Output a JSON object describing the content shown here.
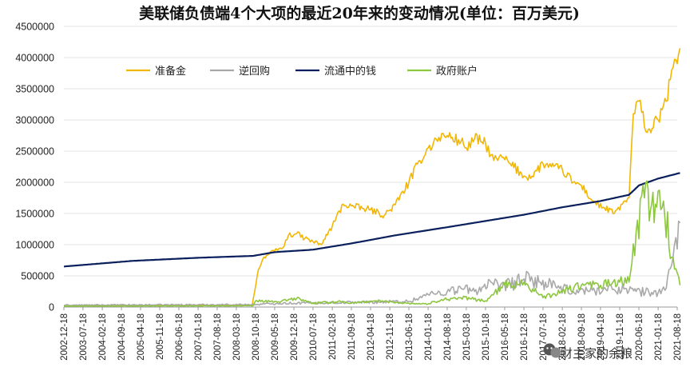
{
  "chart_data": {
    "type": "line",
    "title": "美联储负债端4个大项的最近20年来的变动情况(单位：百万美元)",
    "xlabel": "",
    "ylabel": "",
    "ylim": [
      0,
      4500000
    ],
    "yticks": [
      "0",
      "500000",
      "1000000",
      "1500000",
      "2000000",
      "2500000",
      "3000000",
      "3500000",
      "4000000",
      "4500000"
    ],
    "xticks": [
      "2002-12-18",
      "2003-07-18",
      "2004-02-18",
      "2004-09-18",
      "2005-04-18",
      "2005-11-18",
      "2006-06-18",
      "2007-01-18",
      "2007-08-18",
      "2008-03-18",
      "2008-10-18",
      "2009-05-18",
      "2009-12-18",
      "2010-07-18",
      "2011-02-18",
      "2011-09-18",
      "2012-04-18",
      "2012-11-18",
      "2013-06-18",
      "2014-01-18",
      "2014-08-18",
      "2015-03-18",
      "2015-10-18",
      "2016-05-18",
      "2016-12-18",
      "2017-07-18",
      "2018-02-18",
      "2018-09-18",
      "2019-04-18",
      "2019-11-18",
      "2020-06-18",
      "2021-01-18",
      "2021-08-18"
    ],
    "grid": true,
    "legend_position": "top-left",
    "series": [
      {
        "name": "准备金",
        "color": "#F2B705",
        "points": [
          [
            "2002-12-18",
            20000
          ],
          [
            "2008-09-10",
            30000
          ],
          [
            "2008-11-18",
            600000
          ],
          [
            "2009-01-18",
            800000
          ],
          [
            "2009-05-18",
            900000
          ],
          [
            "2009-08-18",
            950000
          ],
          [
            "2009-10-18",
            1150000
          ],
          [
            "2010-01-18",
            1180000
          ],
          [
            "2010-04-18",
            1100000
          ],
          [
            "2010-07-18",
            1050000
          ],
          [
            "2010-10-18",
            1000000
          ],
          [
            "2011-02-18",
            1300000
          ],
          [
            "2011-06-18",
            1650000
          ],
          [
            "2011-09-18",
            1620000
          ],
          [
            "2012-01-18",
            1580000
          ],
          [
            "2012-04-18",
            1560000
          ],
          [
            "2012-09-18",
            1470000
          ],
          [
            "2013-01-18",
            1640000
          ],
          [
            "2013-06-18",
            2000000
          ],
          [
            "2013-10-18",
            2350000
          ],
          [
            "2014-01-18",
            2550000
          ],
          [
            "2014-05-18",
            2720000
          ],
          [
            "2014-08-18",
            2750000
          ],
          [
            "2015-01-18",
            2650000
          ],
          [
            "2015-03-18",
            2550000
          ],
          [
            "2015-06-18",
            2700000
          ],
          [
            "2015-10-18",
            2620000
          ],
          [
            "2016-01-18",
            2350000
          ],
          [
            "2016-04-18",
            2400000
          ],
          [
            "2016-07-18",
            2300000
          ],
          [
            "2016-12-18",
            2100000
          ],
          [
            "2017-03-18",
            2100000
          ],
          [
            "2017-07-18",
            2300000
          ],
          [
            "2017-10-18",
            2250000
          ],
          [
            "2018-02-18",
            2200000
          ],
          [
            "2018-06-18",
            2000000
          ],
          [
            "2018-09-18",
            1950000
          ],
          [
            "2019-01-18",
            1700000
          ],
          [
            "2019-05-18",
            1600000
          ],
          [
            "2019-09-18",
            1500000
          ],
          [
            "2019-12-18",
            1650000
          ],
          [
            "2020-03-01",
            1750000
          ],
          [
            "2020-04-18",
            3100000
          ],
          [
            "2020-06-18",
            3300000
          ],
          [
            "2020-09-18",
            2800000
          ],
          [
            "2021-01-18",
            3000000
          ],
          [
            "2021-04-18",
            3300000
          ],
          [
            "2021-06-18",
            3800000
          ],
          [
            "2021-08-18",
            3900000
          ],
          [
            "2021-09-18",
            4150000
          ]
        ]
      },
      {
        "name": "逆回购",
        "color": "#A9A9A9",
        "points": [
          [
            "2002-12-18",
            30000
          ],
          [
            "2008-10-18",
            40000
          ],
          [
            "2009-06-18",
            60000
          ],
          [
            "2011-01-18",
            70000
          ],
          [
            "2013-06-18",
            90000
          ],
          [
            "2014-01-18",
            200000
          ],
          [
            "2014-08-18",
            250000
          ],
          [
            "2015-01-18",
            300000
          ],
          [
            "2015-06-18",
            250000
          ],
          [
            "2015-12-18",
            400000
          ],
          [
            "2016-03-18",
            300000
          ],
          [
            "2016-12-18",
            450000
          ],
          [
            "2017-06-18",
            400000
          ],
          [
            "2018-01-18",
            300000
          ],
          [
            "2018-06-18",
            250000
          ],
          [
            "2019-01-18",
            270000
          ],
          [
            "2019-06-18",
            280000
          ],
          [
            "2020-01-18",
            300000
          ],
          [
            "2020-05-18",
            250000
          ],
          [
            "2021-01-18",
            230000
          ],
          [
            "2021-04-18",
            300000
          ],
          [
            "2021-07-18",
            1000000
          ],
          [
            "2021-09-18",
            1350000
          ]
        ]
      },
      {
        "name": "流通中的钱",
        "color": "#0A1F5C",
        "points": [
          [
            "2002-12-18",
            650000
          ],
          [
            "2005-01-18",
            740000
          ],
          [
            "2007-01-18",
            790000
          ],
          [
            "2008-09-18",
            820000
          ],
          [
            "2009-05-18",
            880000
          ],
          [
            "2010-07-18",
            920000
          ],
          [
            "2011-09-18",
            1020000
          ],
          [
            "2013-01-18",
            1150000
          ],
          [
            "2014-08-18",
            1280000
          ],
          [
            "2015-10-18",
            1380000
          ],
          [
            "2016-12-18",
            1480000
          ],
          [
            "2018-02-18",
            1600000
          ],
          [
            "2019-04-18",
            1700000
          ],
          [
            "2020-03-01",
            1800000
          ],
          [
            "2020-06-18",
            1950000
          ],
          [
            "2021-01-18",
            2060000
          ],
          [
            "2021-09-18",
            2150000
          ]
        ]
      },
      {
        "name": "政府账户",
        "color": "#8DC63F",
        "points": [
          [
            "2002-12-18",
            15000
          ],
          [
            "2008-09-18",
            20000
          ],
          [
            "2008-10-18",
            100000
          ],
          [
            "2009-06-18",
            80000
          ],
          [
            "2010-01-18",
            140000
          ],
          [
            "2010-07-18",
            60000
          ],
          [
            "2011-06-18",
            90000
          ],
          [
            "2011-09-18",
            60000
          ],
          [
            "2012-06-18",
            100000
          ],
          [
            "2013-06-18",
            60000
          ],
          [
            "2014-01-18",
            50000
          ],
          [
            "2014-06-18",
            120000
          ],
          [
            "2015-01-18",
            150000
          ],
          [
            "2015-10-18",
            100000
          ],
          [
            "2016-05-18",
            350000
          ],
          [
            "2016-12-18",
            400000
          ],
          [
            "2017-07-18",
            150000
          ],
          [
            "2018-02-18",
            250000
          ],
          [
            "2018-09-18",
            350000
          ],
          [
            "2019-04-18",
            350000
          ],
          [
            "2019-11-18",
            400000
          ],
          [
            "2020-03-01",
            400000
          ],
          [
            "2020-05-18",
            1200000
          ],
          [
            "2020-08-18",
            1750000
          ],
          [
            "2020-12-18",
            1650000
          ],
          [
            "2021-03-18",
            1700000
          ],
          [
            "2021-06-18",
            800000
          ],
          [
            "2021-09-18",
            350000
          ]
        ]
      }
    ]
  },
  "watermark": {
    "icon": "wechat-icon",
    "text": "财主家的余粮"
  }
}
